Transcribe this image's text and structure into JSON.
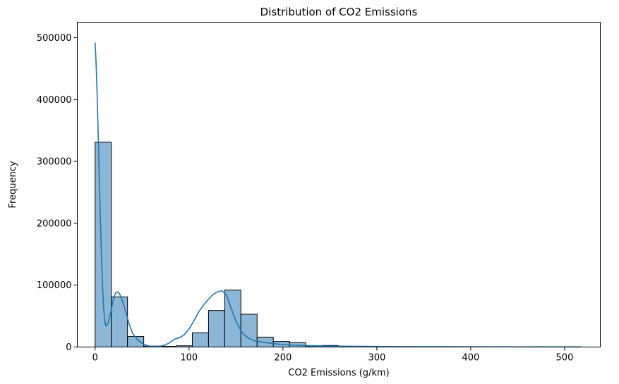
{
  "chart_data": {
    "type": "bar",
    "title": "Distribution of CO2 Emissions",
    "xlabel": "CO2 Emissions (g/km)",
    "ylabel": "Frequency",
    "xlim": [
      -19.0,
      538.0
    ],
    "ylim": [
      0,
      525000
    ],
    "xticks": [
      0,
      100,
      200,
      300,
      400,
      500
    ],
    "yticks": [
      0,
      100000,
      200000,
      300000,
      400000,
      500000
    ],
    "bin_width": 17.25,
    "bin_start": 0,
    "counts": [
      331000,
      81000,
      17000,
      1500,
      1000,
      2000,
      23000,
      59000,
      92000,
      53000,
      16000,
      9000,
      7000,
      1500,
      2500,
      1000,
      500,
      500,
      500,
      500,
      400,
      300,
      300,
      300,
      200,
      200,
      200,
      200,
      200,
      200
    ],
    "kde": {
      "x": [
        0,
        1,
        2,
        3,
        4,
        5,
        6,
        7,
        8,
        9,
        10,
        11,
        12,
        14,
        16,
        18,
        20,
        22,
        24,
        26,
        28,
        30,
        33,
        36,
        40,
        45,
        50,
        55,
        60,
        65,
        70,
        75,
        80,
        85,
        90,
        95,
        100,
        105,
        110,
        115,
        120,
        125,
        130,
        135,
        140,
        145,
        150,
        155,
        160,
        165,
        170,
        180,
        190,
        200,
        210,
        220,
        230,
        240,
        250,
        260,
        280,
        300,
        320,
        350,
        400,
        450,
        518
      ],
      "y": [
        492000,
        460000,
        415000,
        360000,
        300000,
        240000,
        185000,
        135000,
        95000,
        65000,
        46000,
        36000,
        34000,
        40000,
        52000,
        67000,
        80000,
        88000,
        89000,
        86000,
        79000,
        70000,
        55000,
        38000,
        22000,
        12000,
        6000,
        2500,
        1000,
        800,
        1500,
        3500,
        7500,
        13000,
        15000,
        20000,
        29000,
        42000,
        56000,
        67000,
        76000,
        84000,
        89000,
        91000,
        84000,
        62000,
        42000,
        27000,
        18000,
        13000,
        10000,
        7500,
        5500,
        4000,
        3000,
        2500,
        2200,
        1800,
        1500,
        1300,
        1100,
        900,
        700,
        500,
        400,
        300,
        200
      ]
    },
    "bar_fill": "#8bb6d6",
    "bar_edge": "#000000",
    "kde_color": "#1f77b4",
    "grid": false,
    "legend": "none"
  }
}
